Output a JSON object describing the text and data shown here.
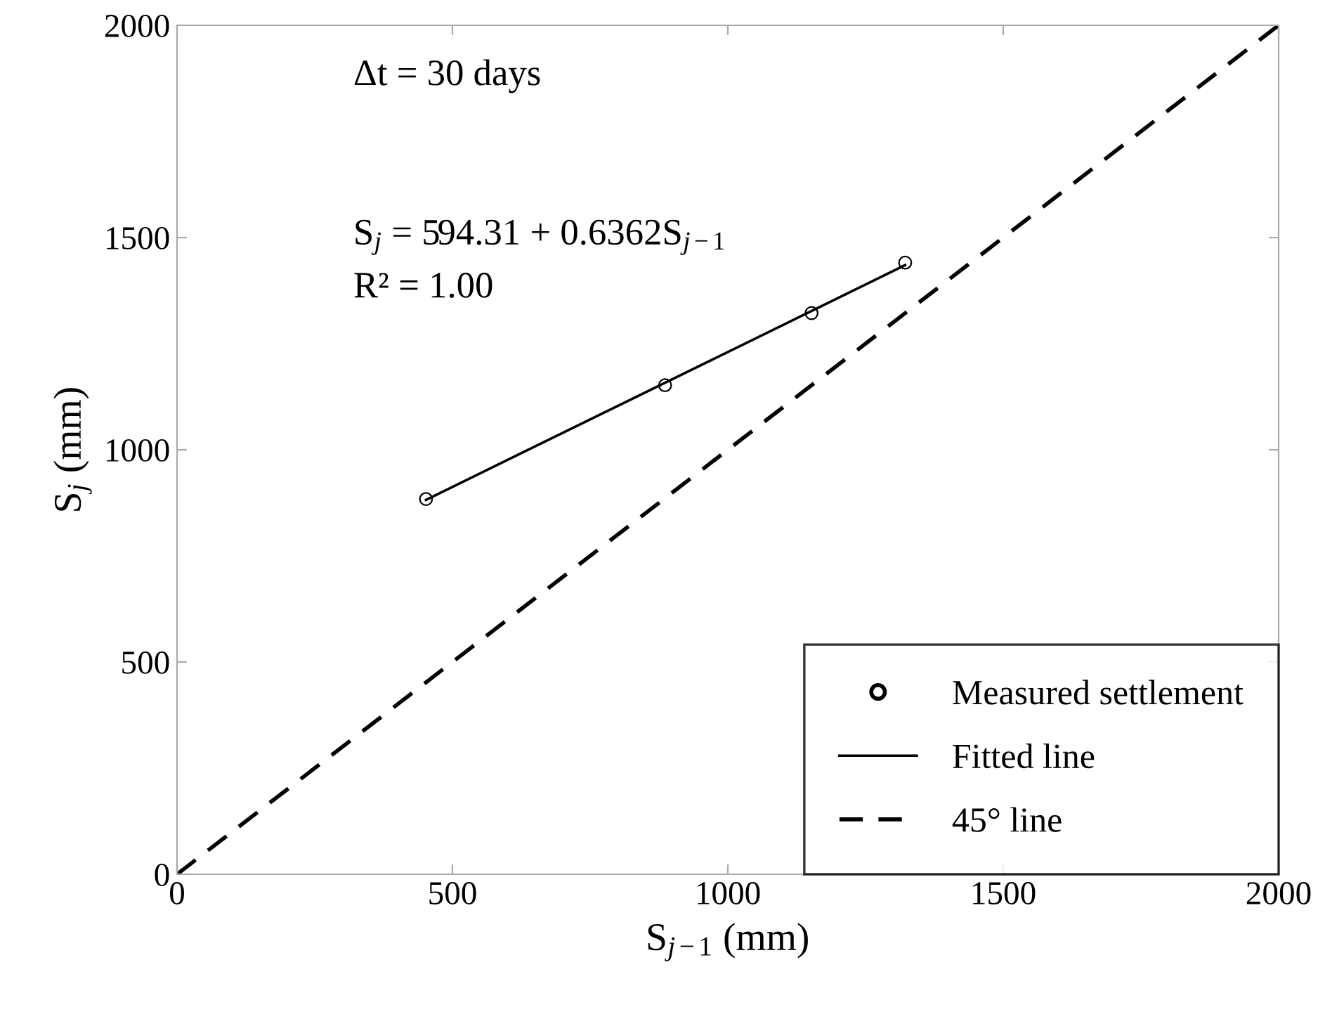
{
  "chart_data": {
    "type": "scatter",
    "xlabel": "S$_{j−1}$ (mm)",
    "ylabel": "S$_{j}$ (mm)",
    "annotations": [
      "Δt = 30 days",
      "S$_{j}$ = 594.31 + 0.6362S$_{j−1}$",
      "R² = 1.00"
    ],
    "xlim": [
      0,
      2000
    ],
    "ylim": [
      0,
      2000
    ],
    "xticks": [
      0,
      500,
      1000,
      1500,
      2000
    ],
    "yticks": [
      0,
      500,
      1000,
      1500,
      2000
    ],
    "grid": false,
    "legend": "bottom right",
    "series": [
      {
        "name": "Measured settlement",
        "color": "#000000",
        "marker": "circle",
        "x": [
          452,
          886,
          1152,
          1322
        ],
        "values": [
          884,
          1152,
          1322,
          1441
        ]
      },
      {
        "name": "Fitted line",
        "type": "line",
        "color": "#000000",
        "line_style": "solid",
        "marker": "none",
        "x": [
          452,
          1322
        ],
        "values": [
          882,
          1435
        ]
      },
      {
        "name": "45° line",
        "type": "line",
        "color": "#000000",
        "line_style": "dashed",
        "marker": "none",
        "x": [
          0,
          2000
        ],
        "values": [
          0,
          2000
        ]
      }
    ]
  }
}
